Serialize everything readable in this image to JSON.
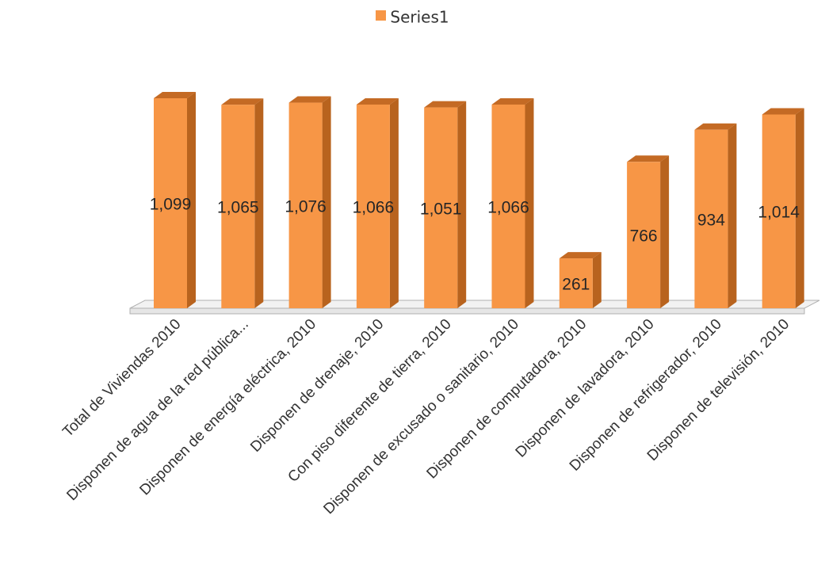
{
  "chart_data": {
    "type": "bar",
    "style": "3d-column",
    "categories": [
      "Total de Viviendas  2010",
      "Disponen de agua de la red pública...",
      "Disponen de energía eléctrica, 2010",
      "Disponen de drenaje, 2010",
      "Con piso diferente de tierra, 2010",
      "Disponen de excusado o sanitario, 2010",
      "Disponen de computadora, 2010",
      "Disponen de lavadora, 2010",
      "Disponen de refrigerador, 2010",
      "Disponen de televisión, 2010"
    ],
    "series": [
      {
        "name": "Series1",
        "values": [
          1099,
          1065,
          1076,
          1066,
          1051,
          1066,
          261,
          766,
          934,
          1014
        ],
        "labels": [
          "1,099",
          "1,065",
          "1,076",
          "1,066",
          "1,051",
          "1,066",
          "261",
          "766",
          "934",
          "1,014"
        ]
      }
    ],
    "ylim": [
      0,
      1099
    ],
    "grid": false,
    "legend": "top-center",
    "colors": {
      "front": "#F79646",
      "side": "#B8631E",
      "top": "#C46A24",
      "floor": "#f2f2f2",
      "floor_stroke": "#b0b0b0",
      "label_text": "#262626",
      "axis_text": "#333333"
    }
  }
}
